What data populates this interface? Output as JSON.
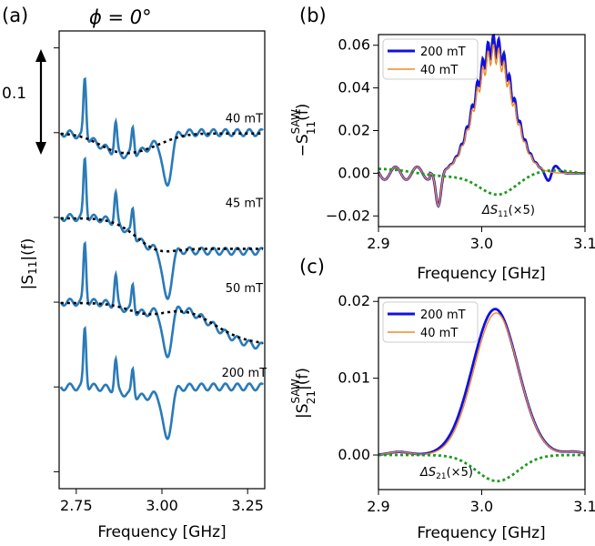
{
  "chart_data": [
    {
      "panel": "(a)",
      "type": "line",
      "title": "ϕ = 0°",
      "xlabel": "Frequency [GHz]",
      "ylabel": "|S11|(f)",
      "xlim": [
        2.7,
        3.3
      ],
      "xticks": [
        "2.75",
        "3.00",
        "3.25"
      ],
      "ylim": [
        -0.42,
        0.12
      ],
      "scale_bar_label": "0.1",
      "scale_bar_value": 0.1,
      "traces": [
        {
          "label": "40 mT",
          "offset": 0.0,
          "dip_depth": 0.08,
          "response": "sat"
        },
        {
          "label": "45 mT",
          "offset": -0.1,
          "dip_depth": 0.08,
          "response": "up"
        },
        {
          "label": "50 mT",
          "offset": -0.2,
          "dip_depth": 0.08,
          "response": "down"
        },
        {
          "label": "200 mT",
          "offset": -0.3,
          "dip_depth": 0.08,
          "response": "none"
        }
      ],
      "peaks_GHz": [
        2.775,
        2.865,
        2.915
      ],
      "dip_GHz": 3.015,
      "series_colors": {
        "data": "#2a7ab8",
        "fit": "#000000",
        "baseline": "#2233dd"
      }
    },
    {
      "panel": "(b)",
      "type": "line",
      "xlabel": "Frequency [GHz]",
      "ylabel_main": "−S",
      "ylabel_sup": "SAW",
      "ylabel_sub": "11",
      "ylabel_tail": "(f)",
      "xlim": [
        2.9,
        3.1
      ],
      "xticks": [
        "2.9",
        "3.0",
        "3.1"
      ],
      "ylim": [
        -0.025,
        0.065
      ],
      "yticks": [
        -0.02,
        0.0,
        0.02,
        0.04,
        0.06
      ],
      "ytick_labels": [
        "−0.02",
        "0.00",
        "0.02",
        "0.04",
        "0.06"
      ],
      "legend": [
        {
          "name": "200 mT",
          "color": "#1111dd"
        },
        {
          "name": "40 mT",
          "color": "#f08a2a"
        }
      ],
      "annotation_main": "ΔS",
      "annotation_sub": "11",
      "annotation_tail": "(×5)",
      "series": [
        {
          "name": "200 mT",
          "color": "#1111dd",
          "peak": 0.06,
          "center_GHz": 3.015
        },
        {
          "name": "40 mT",
          "color": "#f08a2a",
          "peak": 0.056,
          "center_GHz": 3.015
        },
        {
          "name": "ΔS11(×5)",
          "color": "#1f9a1f",
          "min": -0.01,
          "center_GHz": 3.015
        }
      ]
    },
    {
      "panel": "(c)",
      "type": "line",
      "xlabel": "Frequency [GHz]",
      "ylabel_main": "|S",
      "ylabel_sup": "SAW",
      "ylabel_sub": "21",
      "ylabel_tail": "|(f)",
      "xlim": [
        2.9,
        3.1
      ],
      "xticks": [
        "2.9",
        "3.0",
        "3.1"
      ],
      "ylim": [
        -0.0045,
        0.0205
      ],
      "yticks": [
        0.0,
        0.01,
        0.02
      ],
      "ytick_labels": [
        "0.00",
        "0.01",
        "0.02"
      ],
      "legend": [
        {
          "name": "200 mT",
          "color": "#1111dd"
        },
        {
          "name": "40 mT",
          "color": "#f08a2a"
        }
      ],
      "annotation_main": "ΔS",
      "annotation_sub": "21",
      "annotation_tail": "(×5)",
      "series": [
        {
          "name": "200 mT",
          "color": "#1111dd",
          "peak": 0.019,
          "center_GHz": 3.013
        },
        {
          "name": "40 mT",
          "color": "#f08a2a",
          "peak": 0.0185,
          "center_GHz": 3.013
        },
        {
          "name": "ΔS21(×5)",
          "color": "#1f9a1f",
          "min": -0.0034,
          "center_GHz": 3.015
        }
      ]
    }
  ]
}
